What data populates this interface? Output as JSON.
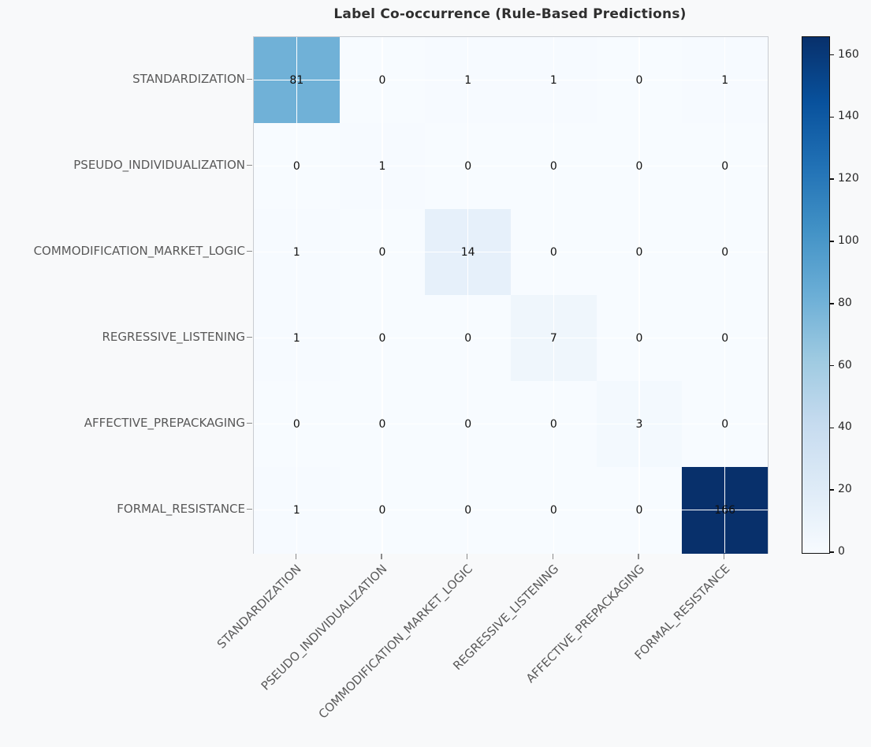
{
  "title": "Label Co-occurrence (Rule-Based Predictions)",
  "chart_data": {
    "type": "heatmap",
    "title": "Label Co-occurrence (Rule-Based Predictions)",
    "categories": [
      "STANDARDIZATION",
      "PSEUDO_INDIVIDUALIZATION",
      "COMMODIFICATION_MARKET_LOGIC",
      "REGRESSIVE_LISTENING",
      "AFFECTIVE_PREPACKAGING",
      "FORMAL_RESISTANCE"
    ],
    "matrix": [
      [
        81,
        0,
        1,
        1,
        0,
        1
      ],
      [
        0,
        1,
        0,
        0,
        0,
        0
      ],
      [
        1,
        0,
        14,
        0,
        0,
        0
      ],
      [
        1,
        0,
        0,
        7,
        0,
        0
      ],
      [
        0,
        0,
        0,
        0,
        3,
        0
      ],
      [
        1,
        0,
        0,
        0,
        0,
        166
      ]
    ],
    "vmin": 0,
    "vmax": 166,
    "colormap": "Blues",
    "colormap_stops": [
      [
        0.0,
        "#f7fbff"
      ],
      [
        0.125,
        "#deebf7"
      ],
      [
        0.25,
        "#c6dbef"
      ],
      [
        0.375,
        "#9ecae1"
      ],
      [
        0.5,
        "#6baed6"
      ],
      [
        0.625,
        "#4292c6"
      ],
      [
        0.75,
        "#2171b5"
      ],
      [
        0.875,
        "#08519c"
      ],
      [
        1.0,
        "#08306b"
      ]
    ],
    "colorbar_ticks": [
      0,
      20,
      40,
      60,
      80,
      100,
      120,
      140,
      160
    ],
    "grid": true,
    "legend_position": "right-colorbar",
    "x_tick_rotation_deg": 45
  },
  "colors": {
    "figure_background": "#f8f9fa",
    "plot_background": "#f7fbff",
    "grid_line": "#ffffff",
    "title_text": "#2f2f2f",
    "axis_label_text": "#595959",
    "annotation_text": "#111111",
    "plot_border": "#c9ccd1",
    "colorbar_border": "#111111",
    "colorbar_label_text": "#262626",
    "tick_mark": "#8a8a8a"
  }
}
